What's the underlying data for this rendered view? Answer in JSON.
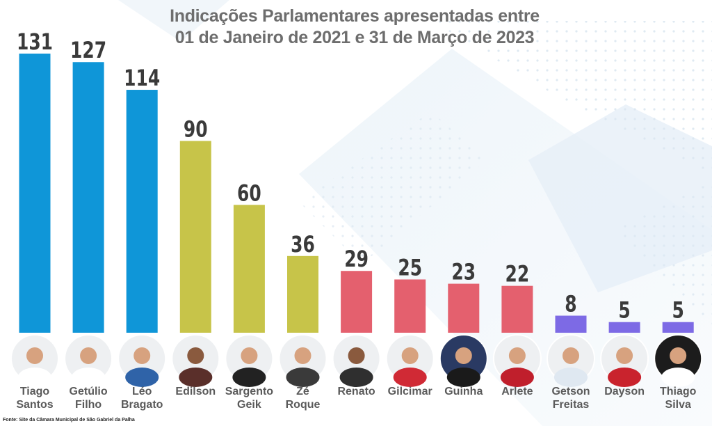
{
  "title": {
    "line1": "Indicações Parlamentares apresentadas entre",
    "line2": "01 de Janeiro de 2021 e 31 de Março de 2023"
  },
  "source": "Fonte: Site da Câmara Municipal de São Gabriel da Palha",
  "colors": {
    "blue": "#0f96d8",
    "olive": "#c7c449",
    "red": "#e4606e",
    "purple": "#7d6ae5",
    "value_text": "#3a3a3a",
    "name_text": "#5a5a5a"
  },
  "chart_data": {
    "type": "bar",
    "title": "Indicações Parlamentares apresentadas entre 01 de Janeiro de 2021 e 31 de Março de 2023",
    "categories": [
      "Tiago Santos",
      "Getúlio Filho",
      "Léo Bragato",
      "Edilson",
      "Sargento Geik",
      "Zé Roque",
      "Renato",
      "Gilcimar",
      "Guinha",
      "Arlete",
      "Getson Freitas",
      "Dayson",
      "Thiago Silva"
    ],
    "label_lines": [
      [
        "Tiago",
        "Santos"
      ],
      [
        "Getúlio",
        "Filho"
      ],
      [
        "Léo",
        "Bragato"
      ],
      [
        "Edilson"
      ],
      [
        "Sargento",
        "Geik"
      ],
      [
        "Zé",
        "Roque"
      ],
      [
        "Renato"
      ],
      [
        "Gilcimar"
      ],
      [
        "Guinha"
      ],
      [
        "Arlete"
      ],
      [
        "Getson",
        "Freitas"
      ],
      [
        "Dayson"
      ],
      [
        "Thiago",
        "Silva"
      ]
    ],
    "values": [
      131,
      127,
      114,
      90,
      60,
      36,
      29,
      25,
      23,
      22,
      8,
      5,
      5
    ],
    "bar_colors": [
      "blue",
      "blue",
      "blue",
      "olive",
      "olive",
      "olive",
      "red",
      "red",
      "red",
      "red",
      "purple",
      "purple",
      "purple"
    ],
    "ylim": [
      0,
      131
    ],
    "grid": false,
    "legend": "none"
  }
}
